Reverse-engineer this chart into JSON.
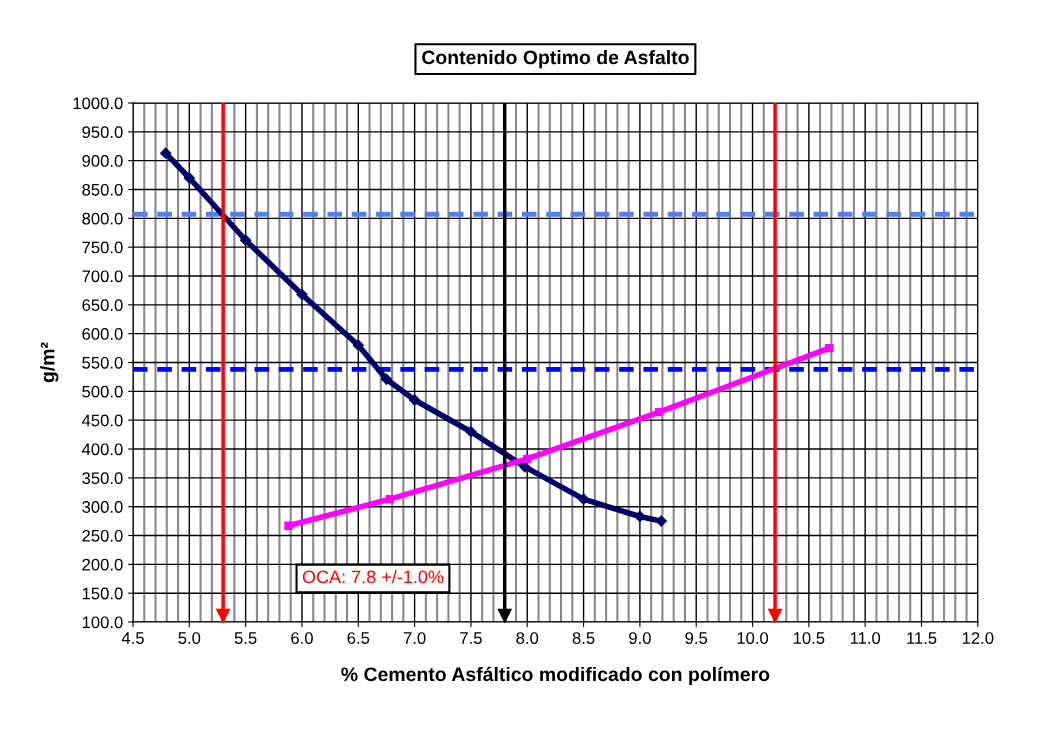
{
  "chart_data": {
    "type": "line",
    "title": "Contenido Optimo de Asfalto",
    "xlabel": "% Cemento Asfáltico modificado con polímero",
    "ylabel": "g/m²",
    "series": [
      {
        "x": [
          4.79,
          5.0,
          5.5,
          6.0,
          6.5,
          6.75,
          7.0,
          7.5,
          7.98,
          8.5,
          9.0,
          9.19
        ],
        "values": [
          913,
          870,
          762,
          668,
          580,
          521,
          485,
          430,
          369,
          313,
          283,
          275
        ],
        "color": "#000066",
        "marker": "diamond"
      },
      {
        "x": [
          5.88,
          6.78,
          8.0,
          9.17,
          10.68
        ],
        "values": [
          267,
          313,
          383,
          464,
          575
        ],
        "color": "#ff00ff",
        "marker": "square"
      }
    ],
    "xlim": [
      4.5,
      12.0
    ],
    "xticks": [
      {
        "value": 4.5,
        "label": "4.5"
      },
      {
        "value": 5.0,
        "label": "5.0"
      },
      {
        "value": 5.5,
        "label": "5.5"
      },
      {
        "value": 6.0,
        "label": "6.0"
      },
      {
        "value": 6.5,
        "label": "6.5"
      },
      {
        "value": 7.0,
        "label": "7.0"
      },
      {
        "value": 7.5,
        "label": "7.5"
      },
      {
        "value": 8.0,
        "label": "8.0"
      },
      {
        "value": 8.5,
        "label": "8.5"
      },
      {
        "value": 9.0,
        "label": "9.0"
      },
      {
        "value": 9.5,
        "label": "9.5"
      },
      {
        "value": 10.0,
        "label": "10.0"
      },
      {
        "value": 10.5,
        "label": "10.5"
      },
      {
        "value": 11.0,
        "label": "11.0"
      },
      {
        "value": 11.5,
        "label": "11.5"
      },
      {
        "value": 12.0,
        "label": "12.0"
      }
    ],
    "ylim": [
      100,
      1000
    ],
    "yticks": [
      {
        "value": 100,
        "label": "100.0"
      },
      {
        "value": 150,
        "label": "150.0"
      },
      {
        "value": 200,
        "label": "200.0"
      },
      {
        "value": 250,
        "label": "250.0"
      },
      {
        "value": 300,
        "label": "300.0"
      },
      {
        "value": 350,
        "label": "350.0"
      },
      {
        "value": 400,
        "label": "400.0"
      },
      {
        "value": 450,
        "label": "450.0"
      },
      {
        "value": 500,
        "label": "500.0"
      },
      {
        "value": 550,
        "label": "550.0"
      },
      {
        "value": 600,
        "label": "600.0"
      },
      {
        "value": 650,
        "label": "650.0"
      },
      {
        "value": 700,
        "label": "700.0"
      },
      {
        "value": 750,
        "label": "750.0"
      },
      {
        "value": 800,
        "label": "800.0"
      },
      {
        "value": 850,
        "label": "850.0"
      },
      {
        "value": 900,
        "label": "900.0"
      },
      {
        "value": 950,
        "label": "950.0"
      },
      {
        "value": 1000,
        "label": "1000.0"
      }
    ],
    "ref_lines": [
      {
        "axis": "y",
        "value": 807,
        "color": "#4f81f0",
        "line_style": "dashed"
      },
      {
        "axis": "y",
        "value": 538,
        "color": "#0000ff",
        "line_style": "dashed"
      },
      {
        "axis": "x",
        "value": 5.3,
        "color": "#ff0000",
        "line_style": "solid"
      },
      {
        "axis": "x",
        "value": 7.8,
        "color": "#000000",
        "line_style": "solid"
      },
      {
        "axis": "x",
        "value": 10.2,
        "color": "#ff0000",
        "line_style": "solid"
      }
    ],
    "annotations": [
      "OCA: 7.8 +/-1.0%"
    ],
    "grid": true,
    "legend": false,
    "line_style": "solid"
  }
}
